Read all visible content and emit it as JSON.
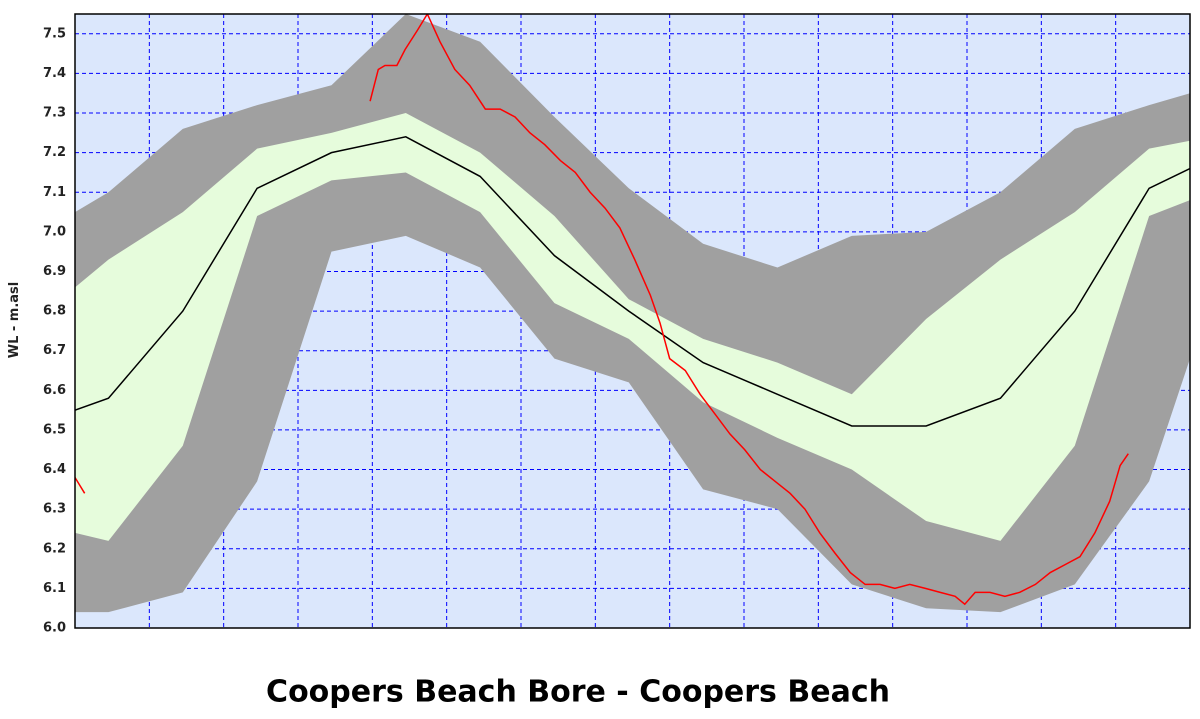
{
  "chart_data": {
    "type": "line",
    "title": "Coopers Beach Bore - Coopers Beach",
    "y_label": "WL - m.asl",
    "x": [
      0,
      0.45,
      1.45,
      2.45,
      3.45,
      4.45,
      5.45,
      6.45,
      7.45,
      8.45,
      9.45,
      10.45,
      11.45,
      12.45,
      13.45,
      14.45,
      15
    ],
    "xlim": [
      0,
      15
    ],
    "xticks": [
      0,
      1,
      2,
      3,
      4,
      5,
      6,
      7,
      8,
      9,
      10,
      11,
      12,
      13,
      14,
      15
    ],
    "ylim": [
      6.0,
      7.55
    ],
    "yticks": [
      {
        "value": 6.0,
        "label": "6.0"
      },
      6.1,
      6.2,
      6.3,
      6.4,
      6.5,
      6.6,
      6.7,
      6.8,
      6.9,
      {
        "value": 7.0,
        "label": "7.0"
      },
      7.1,
      7.2,
      7.3,
      7.4,
      7.5
    ],
    "grid": true,
    "background": "#dbe7fc",
    "grid_color": "#0000ff",
    "series": [
      {
        "type": "range",
        "color": "#a0a0a0",
        "upper": [
          7.05,
          7.1,
          7.26,
          7.32,
          7.37,
          7.55,
          7.48,
          7.29,
          7.11,
          6.97,
          6.91,
          6.99,
          7.0,
          7.1,
          7.26,
          7.32,
          7.35
        ],
        "lower": [
          6.04,
          6.04,
          6.09,
          6.37,
          6.95,
          6.99,
          6.91,
          6.68,
          6.62,
          6.35,
          6.3,
          6.11,
          6.05,
          6.04,
          6.11,
          6.37,
          6.68
        ]
      },
      {
        "type": "range",
        "color": "#e6fcdc",
        "upper": [
          6.86,
          6.93,
          7.05,
          7.21,
          7.25,
          7.3,
          7.2,
          7.04,
          6.83,
          6.73,
          6.67,
          6.59,
          6.78,
          6.93,
          7.05,
          7.21,
          7.23
        ],
        "lower": [
          6.24,
          6.22,
          6.46,
          7.04,
          7.13,
          7.15,
          7.05,
          6.82,
          6.73,
          6.57,
          6.48,
          6.4,
          6.27,
          6.22,
          6.46,
          7.04,
          7.08
        ]
      },
      {
        "type": "line",
        "color": "#000000",
        "values": [
          6.55,
          6.58,
          6.8,
          7.11,
          7.2,
          7.24,
          7.14,
          6.94,
          6.8,
          6.67,
          6.59,
          6.51,
          6.51,
          6.58,
          6.8,
          7.11,
          7.16
        ]
      },
      {
        "type": "line",
        "color": "#ff0000",
        "x": [
          0,
          0.13,
          null,
          3.97,
          4.08,
          4.17,
          4.33,
          4.44,
          4.61,
          4.74,
          4.91,
          5.11,
          5.31,
          5.52,
          5.72,
          5.92,
          6.12,
          6.32,
          6.53,
          6.73,
          6.93,
          7.13,
          7.33,
          7.53,
          7.74,
          7.87,
          8.0,
          8.21,
          8.41,
          8.61,
          8.81,
          9.01,
          9.22,
          9.42,
          9.62,
          9.82,
          10.02,
          10.22,
          10.43,
          10.63,
          10.83,
          11.03,
          11.23,
          11.44,
          11.64,
          11.84,
          11.97,
          12.11,
          12.31,
          12.51,
          12.71,
          12.92,
          13.12,
          13.32,
          13.52,
          13.72,
          13.92,
          14.06,
          14.17
        ],
        "values": [
          6.38,
          6.34,
          null,
          7.33,
          7.41,
          7.42,
          7.42,
          7.46,
          7.51,
          7.55,
          7.48,
          7.41,
          7.37,
          7.31,
          7.31,
          7.29,
          7.25,
          7.22,
          7.18,
          7.15,
          7.1,
          7.06,
          7.01,
          6.93,
          6.84,
          6.77,
          6.68,
          6.65,
          6.59,
          6.54,
          6.49,
          6.45,
          6.4,
          6.37,
          6.34,
          6.3,
          6.24,
          6.19,
          6.14,
          6.11,
          6.11,
          6.1,
          6.11,
          6.1,
          6.09,
          6.08,
          6.06,
          6.09,
          6.09,
          6.08,
          6.09,
          6.11,
          6.14,
          6.16,
          6.18,
          6.24,
          6.32,
          6.41,
          6.44
        ]
      }
    ]
  }
}
